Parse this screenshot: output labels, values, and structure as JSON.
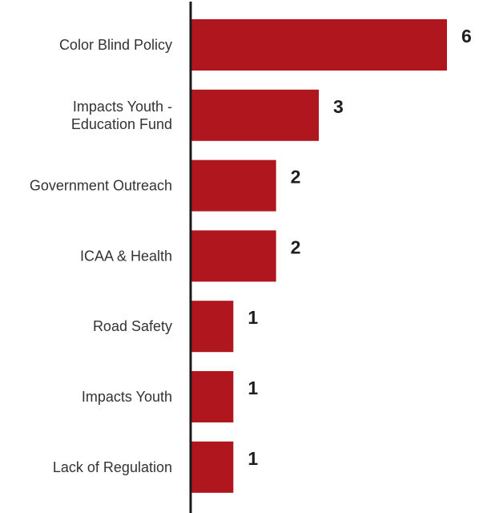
{
  "chart_data": {
    "type": "bar",
    "orientation": "horizontal",
    "categories": [
      "Color Blind Policy",
      "Impacts Youth - Education Fund",
      "Government Outreach",
      "ICAA & Health",
      "Road Safety",
      "Impacts Youth",
      "Lack of Regulation"
    ],
    "category_lines": [
      [
        "Color Blind Policy"
      ],
      [
        "Impacts Youth -",
        "Education Fund"
      ],
      [
        "Government Outreach"
      ],
      [
        "ICAA & Health"
      ],
      [
        "Road Safety"
      ],
      [
        "Impacts Youth"
      ],
      [
        "Lack of Regulation"
      ]
    ],
    "values": [
      6,
      3,
      2,
      2,
      1,
      1,
      1
    ],
    "value_labels": [
      "6",
      "3",
      "2",
      "2",
      "1",
      "1",
      "1"
    ],
    "xlim": [
      0,
      6
    ],
    "grid": false,
    "legend": "none",
    "colors": {
      "bar": "#B0161E",
      "axis": "#1a1a1a"
    }
  }
}
